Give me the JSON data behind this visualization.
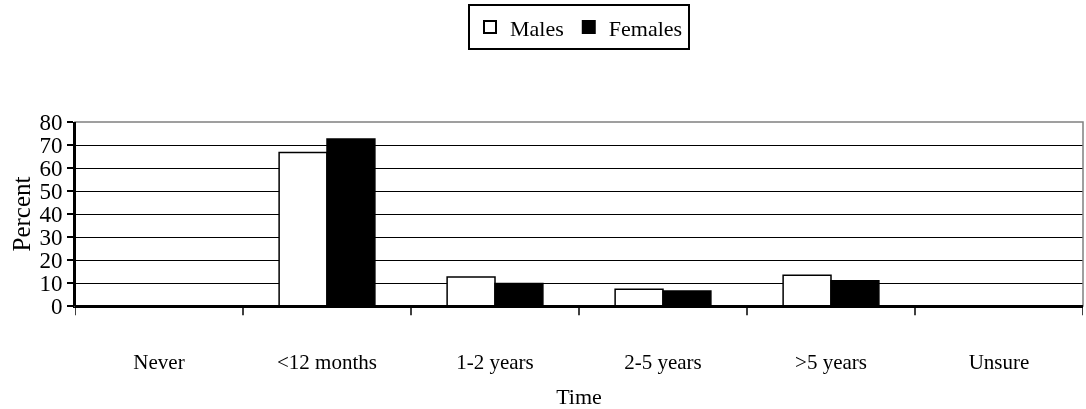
{
  "chart_data": {
    "type": "bar",
    "xlabel": "Time",
    "ylabel": "Percent",
    "categories": [
      "Never",
      "<12 months",
      "1-2 years",
      "2-5 years",
      ">5 years",
      "Unsure"
    ],
    "series": [
      {
        "name": "Males",
        "color": "#ffffff",
        "values": [
          null,
          66.7,
          12.6,
          7.3,
          13.4,
          null
        ]
      },
      {
        "name": "Females",
        "color": "#000000",
        "values": [
          null,
          72.6,
          9.8,
          6.5,
          11,
          null
        ]
      }
    ],
    "ylim": [
      0,
      80
    ],
    "yticks": [
      0,
      10,
      20,
      30,
      40,
      50,
      60,
      70,
      80
    ],
    "grid": "y",
    "legend": "top"
  }
}
